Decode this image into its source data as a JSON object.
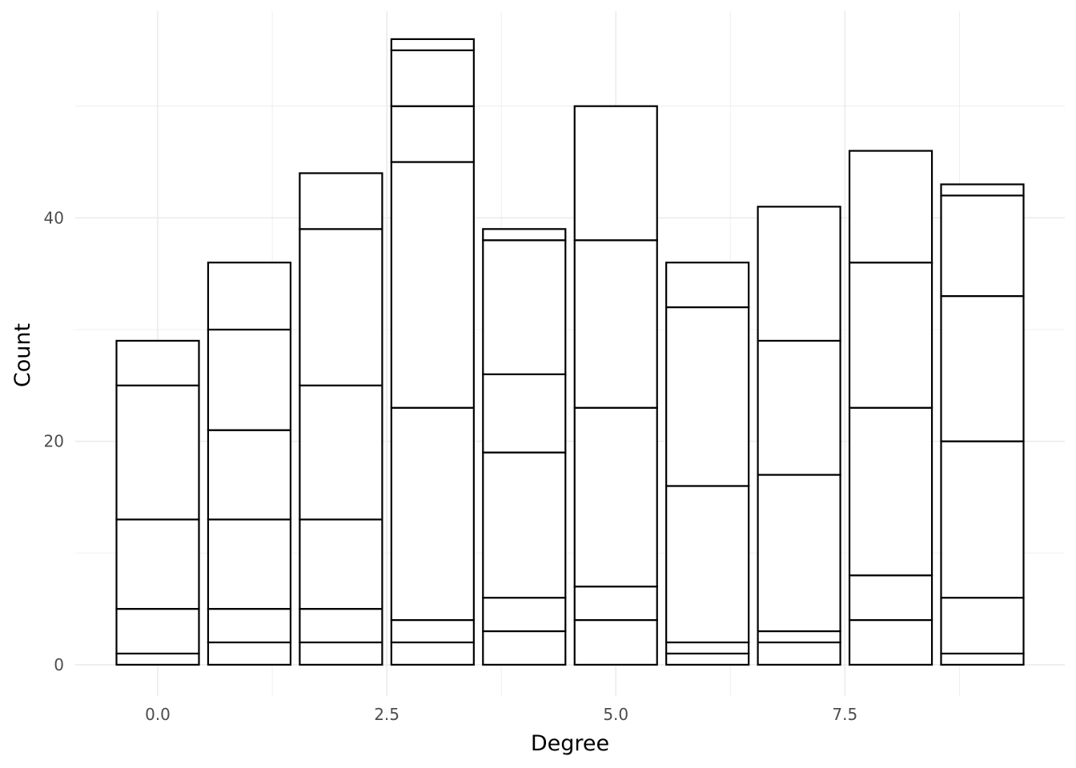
{
  "chart_data": {
    "type": "bar",
    "stacked": true,
    "xlabel": "Degree",
    "ylabel": "Count",
    "x": [
      0,
      1,
      2,
      3,
      4,
      5,
      6,
      7,
      8,
      9
    ],
    "segment_boundaries": [
      [
        1,
        5,
        13,
        25,
        29
      ],
      [
        2,
        5,
        13,
        21,
        30,
        36
      ],
      [
        2,
        5,
        13,
        25,
        39,
        44
      ],
      [
        2,
        4,
        23,
        45,
        50,
        55,
        56
      ],
      [
        3,
        6,
        19,
        26,
        38,
        39
      ],
      [
        4,
        7,
        23,
        38,
        50
      ],
      [
        1,
        2,
        16,
        32,
        36
      ],
      [
        2,
        3,
        17,
        29,
        41
      ],
      [
        4,
        8,
        23,
        36,
        46
      ],
      [
        1,
        6,
        20,
        33,
        42,
        43
      ]
    ],
    "totals": [
      29,
      36,
      44,
      56,
      39,
      50,
      36,
      41,
      46,
      43
    ],
    "xlim": [
      -0.9,
      9.9
    ],
    "ylim": [
      -2.8,
      58.5
    ],
    "x_ticks": [
      0.0,
      2.5,
      5.0,
      7.5
    ],
    "x_tick_labels": [
      "0.0",
      "2.5",
      "5.0",
      "7.5"
    ],
    "y_ticks": [
      0,
      20,
      40
    ],
    "y_tick_labels": [
      "0",
      "20",
      "40"
    ],
    "bar_width": 0.9,
    "bar_fill": "#ffffff",
    "bar_stroke": "#000000",
    "grid": true,
    "grid_color": "#ebebeb",
    "legend": "none"
  }
}
